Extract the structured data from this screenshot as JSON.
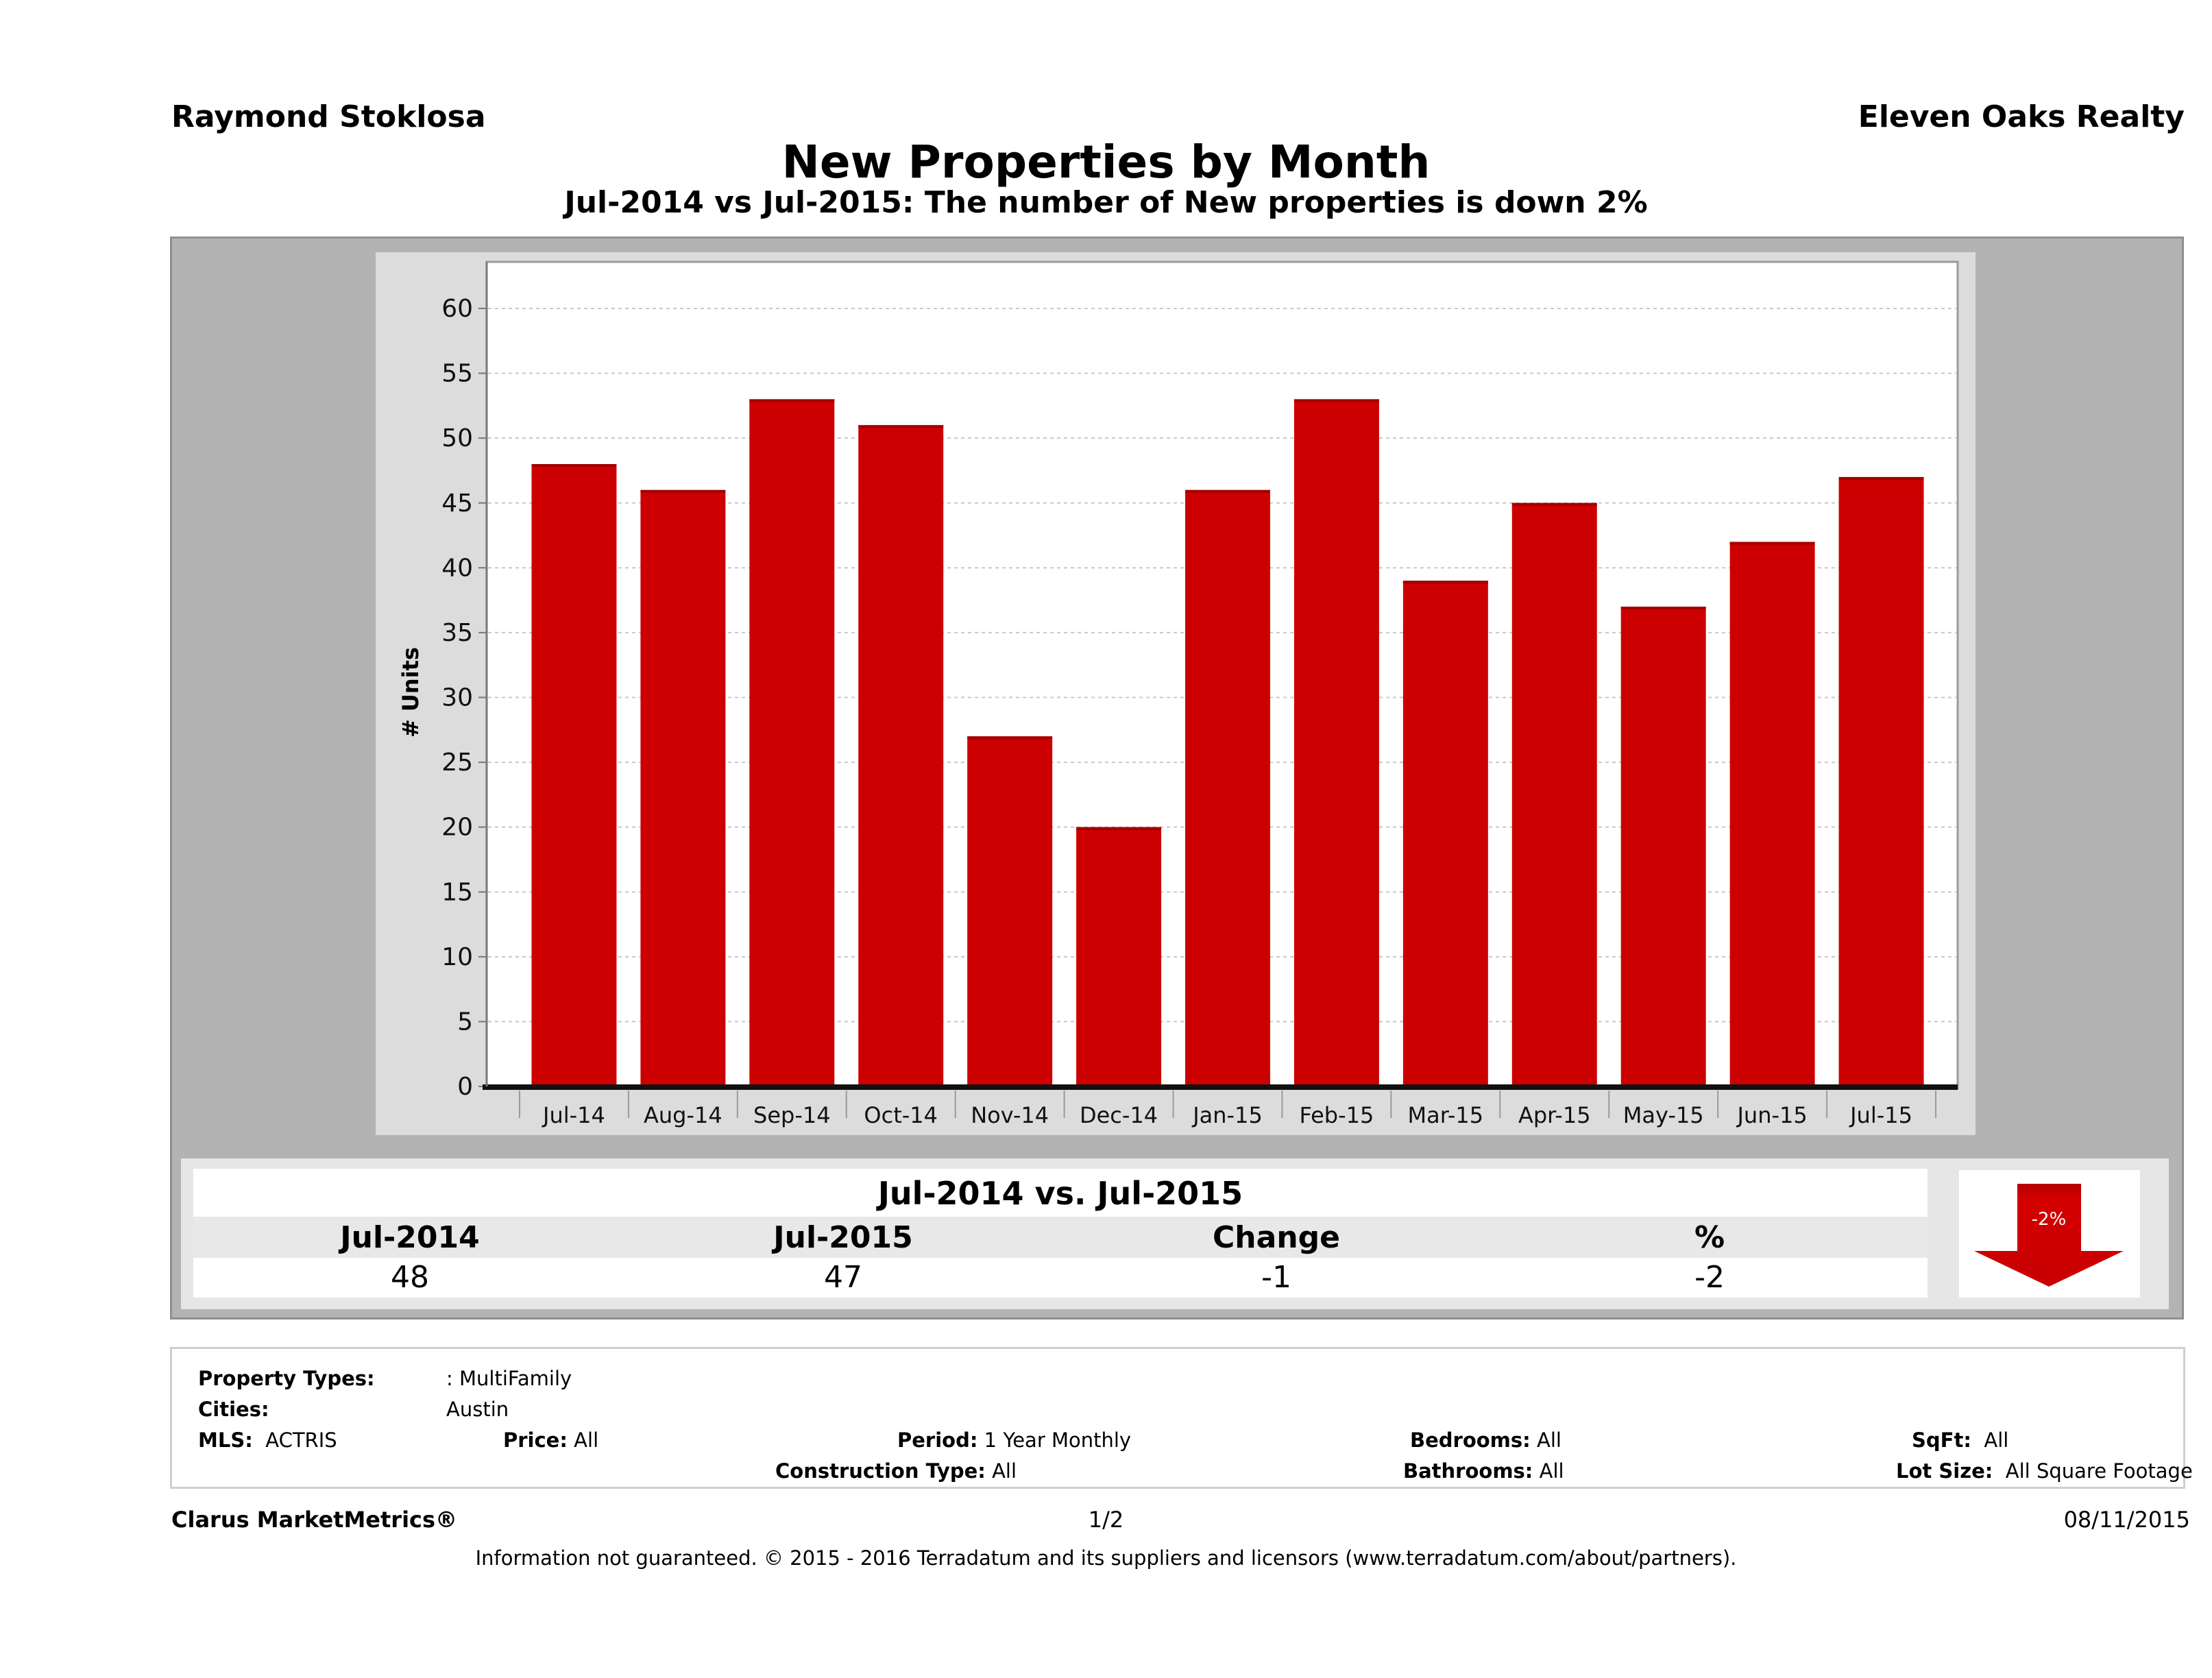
{
  "header": {
    "agent_name": "Raymond Stoklosa",
    "company_name": "Eleven Oaks Realty",
    "title": "New Properties by Month",
    "subtitle": "Jul-2014 vs Jul-2015: The number of New  properties is down 2%"
  },
  "chart_data": {
    "type": "bar",
    "title": "New Properties by Month",
    "xlabel": "",
    "ylabel": "# Units",
    "ylim": [
      0,
      63
    ],
    "yticks": [
      0,
      5,
      10,
      15,
      20,
      25,
      30,
      35,
      40,
      45,
      50,
      55,
      60
    ],
    "grid": true,
    "legend": "none",
    "categories": [
      "Jul-14",
      "Aug-14",
      "Sep-14",
      "Oct-14",
      "Nov-14",
      "Dec-14",
      "Jan-15",
      "Feb-15",
      "Mar-15",
      "Apr-15",
      "May-15",
      "Jun-15",
      "Jul-15"
    ],
    "series": [
      {
        "name": "New Properties",
        "color": "#cc0000",
        "values": [
          48,
          46,
          53,
          51,
          27,
          20,
          46,
          53,
          39,
          45,
          37,
          42,
          47
        ]
      }
    ]
  },
  "summary": {
    "title": "Jul-2014 vs. Jul-2015",
    "headers": [
      "Jul-2014",
      "Jul-2015",
      "Change",
      "%"
    ],
    "values": [
      "48",
      "47",
      "-1",
      "-2"
    ],
    "badge_label": "-2%",
    "direction": "down",
    "badge_color": "#cc0000"
  },
  "filters": {
    "property_types_label": "Property Types:",
    "property_types_value": ": MultiFamily",
    "cities_label": "Cities:",
    "cities_value": "Austin",
    "mls_label": "MLS:",
    "mls_value": "ACTRIS",
    "price_label": "Price:",
    "price_value": "All",
    "period_label": "Period:",
    "period_value": "1 Year Monthly",
    "construction_label": "Construction Type:",
    "construction_value": "All",
    "bedrooms_label": "Bedrooms:",
    "bedrooms_value": "All",
    "bathrooms_label": "Bathrooms:",
    "bathrooms_value": "All",
    "sqft_label": "SqFt:",
    "sqft_value": "All",
    "lotsize_label": "Lot Size:",
    "lotsize_value": "All Square Footage"
  },
  "footer": {
    "brand": "Clarus MarketMetrics®",
    "page": "1/2",
    "date": "08/11/2015",
    "disclaimer": "Information not guaranteed. © 2015 - 2016 Terradatum and its suppliers and licensors (www.terradatum.com/about/partners)."
  }
}
